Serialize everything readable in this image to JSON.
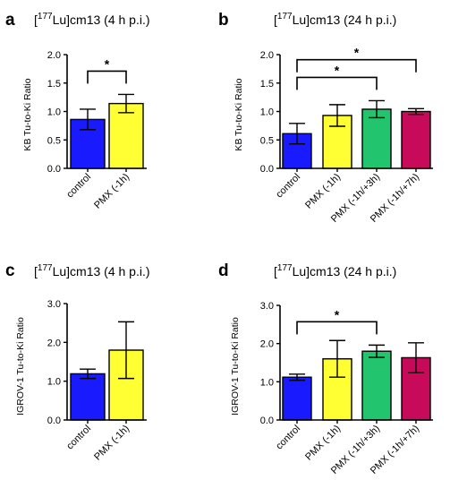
{
  "figure": {
    "panels": [
      {
        "label": "a",
        "title_prefix": "[",
        "title_sup": "177",
        "title_suffix": "Lu]cm13 (4 h p.i.)"
      },
      {
        "label": "b",
        "title_prefix": "[",
        "title_sup": "177",
        "title_suffix": "Lu]cm13 (24 h p.i.)"
      },
      {
        "label": "c",
        "title_prefix": "[",
        "title_sup": "177",
        "title_suffix": "Lu]cm13 (4 h p.i.)"
      },
      {
        "label": "d",
        "title_prefix": "[",
        "title_sup": "177",
        "title_suffix": "Lu]cm13 (24 h p.i.)"
      }
    ]
  },
  "colors": {
    "control": "#1a1aff",
    "pmx_1h": "#ffff33",
    "pmx_1h_3h": "#22c46e",
    "pmx_1h_7h": "#c80a5a",
    "axis": "#000000"
  },
  "chart_data": [
    {
      "type": "bar",
      "categories": [
        "control",
        "PMX (-1h)"
      ],
      "values": [
        0.86,
        1.14
      ],
      "errors": [
        0.18,
        0.16
      ],
      "ylabel": "KB Tu-to-Ki Ratio",
      "ylim": [
        0,
        2.0
      ],
      "yticks": [
        "0.0",
        "0.5",
        "1.0",
        "1.5",
        "2.0"
      ],
      "significance": [
        {
          "from": 0,
          "to": 1,
          "y": 1.71,
          "label": "*"
        }
      ],
      "bar_colors": [
        "#1a1aff",
        "#ffff33"
      ]
    },
    {
      "type": "bar",
      "categories": [
        "control",
        "PMX (-1h)",
        "PMX (-1h/+3h)",
        "PMX (-1h/+7h)"
      ],
      "values": [
        0.61,
        0.93,
        1.04,
        1.0
      ],
      "errors": [
        0.18,
        0.19,
        0.15,
        0.05
      ],
      "ylabel": "KB Tu-to-Ki Ratio",
      "ylim": [
        0,
        2.0
      ],
      "yticks": [
        "0.0",
        "0.5",
        "1.0",
        "1.5",
        "2.0"
      ],
      "significance": [
        {
          "from": 0,
          "to": 3,
          "y": 1.91,
          "label": "*"
        },
        {
          "from": 0,
          "to": 2,
          "y": 1.6,
          "label": "*"
        }
      ],
      "bar_colors": [
        "#1a1aff",
        "#ffff33",
        "#22c46e",
        "#c80a5a"
      ]
    },
    {
      "type": "bar",
      "categories": [
        "control",
        "PMX (-1h)"
      ],
      "values": [
        1.19,
        1.8
      ],
      "errors": [
        0.12,
        0.73
      ],
      "ylabel": "IGROV-1 Tu-to-Ki Ratio",
      "ylim": [
        0,
        3.0
      ],
      "yticks": [
        "0.0",
        "1.0",
        "2.0",
        "3.0"
      ],
      "significance": [],
      "bar_colors": [
        "#1a1aff",
        "#ffff33"
      ]
    },
    {
      "type": "bar",
      "categories": [
        "control",
        "PMX (-1h)",
        "PMX (-1h/+3h)",
        "PMX (-1h/+7h)"
      ],
      "values": [
        1.12,
        1.6,
        1.8,
        1.63
      ],
      "errors": [
        0.08,
        0.48,
        0.16,
        0.39
      ],
      "ylabel": "IGROV-1 Tu-to-Ki Ratio",
      "ylim": [
        0,
        3.0
      ],
      "yticks": [
        "0.0",
        "1.0",
        "2.0",
        "3.0"
      ],
      "significance": [
        {
          "from": 0,
          "to": 2,
          "y": 2.57,
          "label": "*"
        }
      ],
      "bar_colors": [
        "#1a1aff",
        "#ffff33",
        "#22c46e",
        "#c80a5a"
      ]
    }
  ]
}
